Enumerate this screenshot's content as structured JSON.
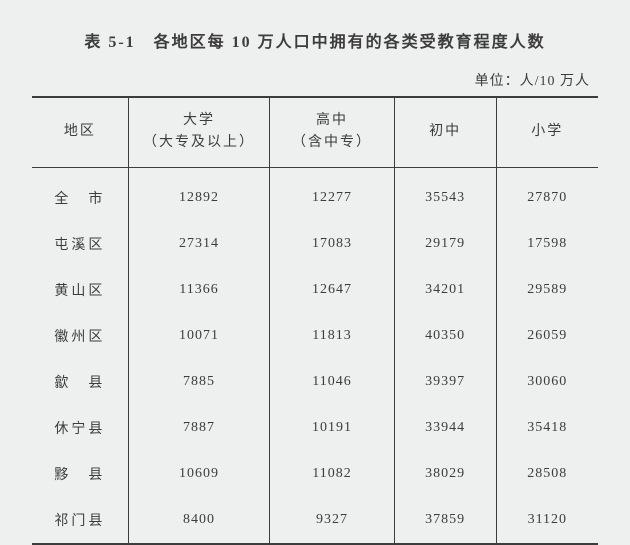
{
  "title": "表 5-1　各地区每 10 万人口中拥有的各类受教育程度人数",
  "unit": "单位：人/10 万人",
  "columns": [
    {
      "label": "地区",
      "sub": ""
    },
    {
      "label": "大学",
      "sub": "（大专及以上）"
    },
    {
      "label": "高中",
      "sub": "（含中专）"
    },
    {
      "label": "初中",
      "sub": ""
    },
    {
      "label": "小学",
      "sub": ""
    }
  ],
  "rows": [
    {
      "region": "全　市",
      "v1": "12892",
      "v2": "12277",
      "v3": "35543",
      "v4": "27870"
    },
    {
      "region": "屯溪区",
      "v1": "27314",
      "v2": "17083",
      "v3": "29179",
      "v4": "17598"
    },
    {
      "region": "黄山区",
      "v1": "11366",
      "v2": "12647",
      "v3": "34201",
      "v4": "29589"
    },
    {
      "region": "徽州区",
      "v1": "10071",
      "v2": "11813",
      "v3": "40350",
      "v4": "26059"
    },
    {
      "region": "歙　县",
      "v1": "7885",
      "v2": "11046",
      "v3": "39397",
      "v4": "30060"
    },
    {
      "region": "休宁县",
      "v1": "7887",
      "v2": "10191",
      "v3": "33944",
      "v4": "35418"
    },
    {
      "region": "黟　县",
      "v1": "10609",
      "v2": "11082",
      "v3": "38029",
      "v4": "28508"
    },
    {
      "region": "祁门县",
      "v1": "8400",
      "v2": "9327",
      "v3": "37859",
      "v4": "31120"
    }
  ],
  "style": {
    "background": "#eef0ef",
    "text_color": "#3c3c3c",
    "border_color": "#3c3c3c",
    "title_fontsize": 16,
    "body_fontsize": 14,
    "font_family": "SimSun"
  }
}
